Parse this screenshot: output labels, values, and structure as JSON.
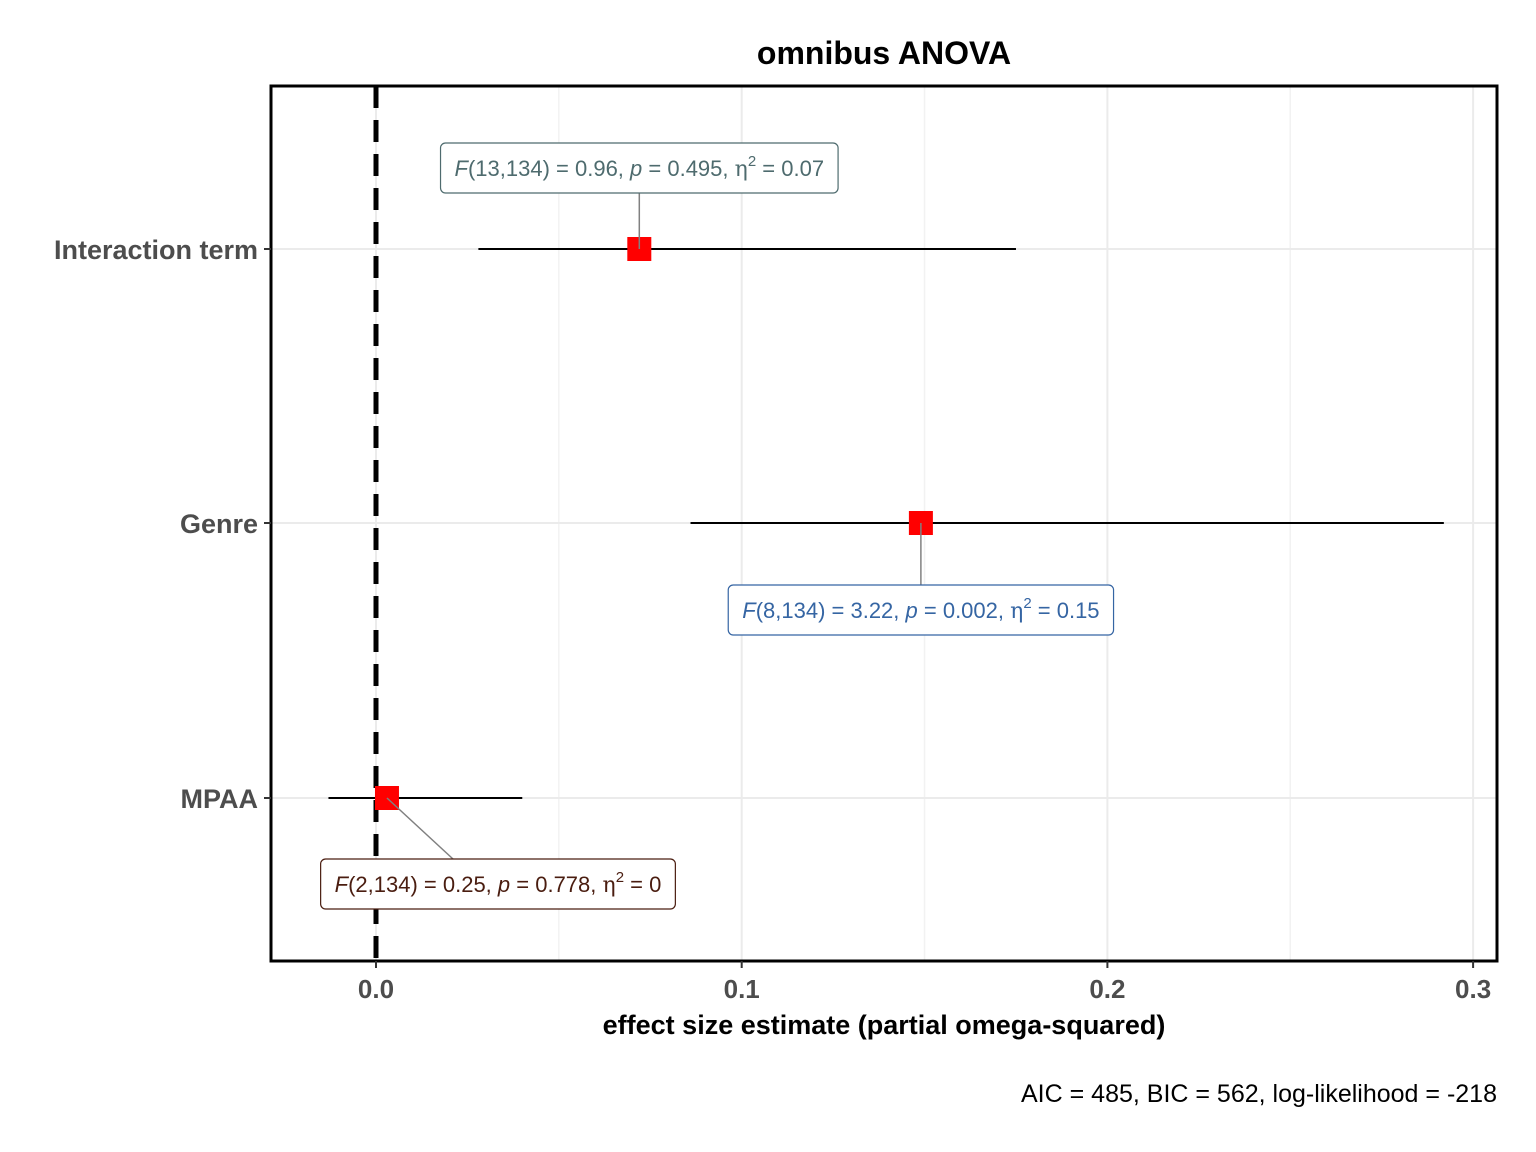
{
  "chart_data": {
    "type": "forest",
    "title": "omnibus ANOVA",
    "xlabel": "effect size estimate (partial omega-squared)",
    "caption": "AIC = 485, BIC = 562, log-likelihood = -218",
    "xlim": [
      -0.029,
      0.306
    ],
    "xticks": [
      0.0,
      0.1,
      0.2,
      0.3
    ],
    "xtick_labels": [
      "0.0",
      "0.1",
      "0.2",
      "0.3"
    ],
    "reference_line": 0,
    "grid": true,
    "point_color": "#ff0000",
    "terms": [
      {
        "name": "Interaction term",
        "estimate": 0.072,
        "ci_low": 0.028,
        "ci_high": 0.175,
        "color": "#4e6b6e",
        "label": {
          "F_df": "(13,134)",
          "F_val": "0.96",
          "p_val": "0.495",
          "eta_val": "0.07"
        }
      },
      {
        "name": "Genre",
        "estimate": 0.149,
        "ci_low": 0.086,
        "ci_high": 0.292,
        "color": "#3565a3",
        "label": {
          "F_df": "(8,134)",
          "F_val": "3.22",
          "p_val": "0.002",
          "eta_val": "0.15"
        }
      },
      {
        "name": "MPAA",
        "estimate": 0.003,
        "ci_low": -0.013,
        "ci_high": 0.04,
        "color": "#4a1d10",
        "label": {
          "F_df": "(2,134)",
          "F_val": "0.25",
          "p_val": "0.778",
          "eta_val": "0"
        }
      }
    ]
  }
}
